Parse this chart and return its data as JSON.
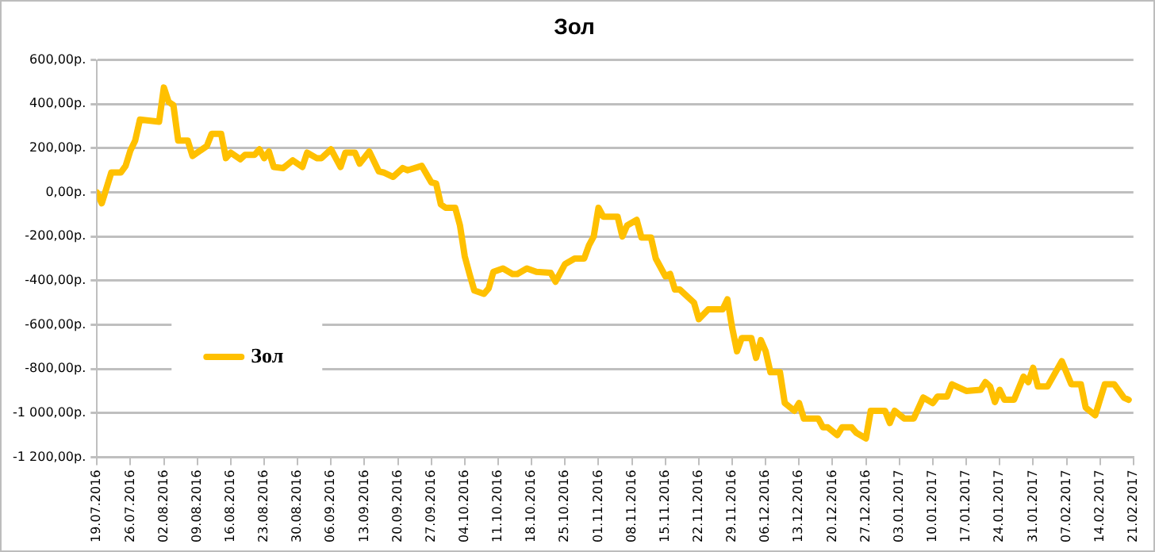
{
  "chart_data": {
    "type": "line",
    "title": "Зол",
    "x": [
      "2016-07-19",
      "2016-07-20",
      "2016-07-22",
      "2016-07-24",
      "2016-07-25",
      "2016-07-26",
      "2016-07-27",
      "2016-07-28",
      "2016-08-01",
      "2016-08-02",
      "2016-08-03",
      "2016-08-04",
      "2016-08-05",
      "2016-08-07",
      "2016-08-08",
      "2016-08-11",
      "2016-08-12",
      "2016-08-14",
      "2016-08-15",
      "2016-08-16",
      "2016-08-18",
      "2016-08-19",
      "2016-08-21",
      "2016-08-22",
      "2016-08-23",
      "2016-08-24",
      "2016-08-25",
      "2016-08-27",
      "2016-08-29",
      "2016-08-31",
      "2016-09-01",
      "2016-09-03",
      "2016-09-04",
      "2016-09-06",
      "2016-09-08",
      "2016-09-09",
      "2016-09-11",
      "2016-09-12",
      "2016-09-14",
      "2016-09-16",
      "2016-09-17",
      "2016-09-19",
      "2016-09-21",
      "2016-09-22",
      "2016-09-25",
      "2016-09-27",
      "2016-09-28",
      "2016-09-29",
      "2016-09-30",
      "2016-10-02",
      "2016-10-03",
      "2016-10-04",
      "2016-10-05",
      "2016-10-06",
      "2016-10-08",
      "2016-10-09",
      "2016-10-10",
      "2016-10-12",
      "2016-10-14",
      "2016-10-15",
      "2016-10-17",
      "2016-10-19",
      "2016-10-22",
      "2016-10-23",
      "2016-10-25",
      "2016-10-27",
      "2016-10-29",
      "2016-10-30",
      "2016-10-31",
      "2016-11-01",
      "2016-11-02",
      "2016-11-05",
      "2016-11-06",
      "2016-11-07",
      "2016-11-09",
      "2016-11-10",
      "2016-11-12",
      "2016-11-13",
      "2016-11-15",
      "2016-11-16",
      "2016-11-17",
      "2016-11-18",
      "2016-11-21",
      "2016-11-22",
      "2016-11-24",
      "2016-11-27",
      "2016-11-28",
      "2016-11-29",
      "2016-11-30",
      "2016-12-01",
      "2016-12-03",
      "2016-12-04",
      "2016-12-05",
      "2016-12-06",
      "2016-12-07",
      "2016-12-09",
      "2016-12-10",
      "2016-12-12",
      "2016-12-13",
      "2016-12-14",
      "2016-12-17",
      "2016-12-18",
      "2016-12-19",
      "2016-12-21",
      "2016-12-22",
      "2016-12-24",
      "2016-12-25",
      "2016-12-27",
      "2016-12-28",
      "2016-12-31",
      "2017-01-01",
      "2017-01-02",
      "2017-01-04",
      "2017-01-06",
      "2017-01-08",
      "2017-01-10",
      "2017-01-11",
      "2017-01-13",
      "2017-01-14",
      "2017-01-16",
      "2017-01-17",
      "2017-01-20",
      "2017-01-21",
      "2017-01-22",
      "2017-01-23",
      "2017-01-24",
      "2017-01-25",
      "2017-01-27",
      "2017-01-29",
      "2017-01-30",
      "2017-01-31",
      "2017-02-01",
      "2017-02-03",
      "2017-02-06",
      "2017-02-08",
      "2017-02-10",
      "2017-02-11",
      "2017-02-13",
      "2017-02-15",
      "2017-02-17",
      "2017-02-19",
      "2017-02-20"
    ],
    "series": [
      {
        "name": "Зол",
        "color": "#ffc000",
        "values": [
          0,
          -50,
          90,
          90,
          120,
          190,
          235,
          330,
          320,
          475,
          410,
          395,
          235,
          235,
          165,
          210,
          265,
          265,
          155,
          180,
          150,
          170,
          170,
          195,
          155,
          185,
          115,
          110,
          145,
          115,
          180,
          155,
          155,
          195,
          115,
          180,
          180,
          130,
          185,
          95,
          90,
          70,
          110,
          100,
          120,
          45,
          40,
          -55,
          -70,
          -70,
          -150,
          -290,
          -370,
          -445,
          -460,
          -435,
          -360,
          -345,
          -370,
          -370,
          -345,
          -360,
          -365,
          -405,
          -325,
          -300,
          -300,
          -240,
          -200,
          -70,
          -110,
          -110,
          -200,
          -150,
          -125,
          -205,
          -205,
          -300,
          -380,
          -370,
          -440,
          -440,
          -500,
          -575,
          -530,
          -530,
          -485,
          -615,
          -720,
          -660,
          -660,
          -750,
          -670,
          -720,
          -815,
          -815,
          -955,
          -990,
          -955,
          -1025,
          -1025,
          -1065,
          -1065,
          -1100,
          -1065,
          -1065,
          -1090,
          -1115,
          -990,
          -990,
          -1045,
          -990,
          -1025,
          -1025,
          -930,
          -955,
          -925,
          -925,
          -870,
          -890,
          -900,
          -895,
          -860,
          -880,
          -950,
          -895,
          -940,
          -940,
          -835,
          -860,
          -795,
          -880,
          -880,
          -765,
          -870,
          -870,
          -975,
          -1010,
          -870,
          -870,
          -930,
          -940
        ]
      }
    ],
    "xlim": [
      "2016-07-19",
      "2017-02-21"
    ],
    "xticks": [
      {
        "value": "2016-07-19",
        "label": "19.07.2016"
      },
      {
        "value": "2016-07-26",
        "label": "26.07.2016"
      },
      {
        "value": "2016-08-02",
        "label": "02.08.2016"
      },
      {
        "value": "2016-08-09",
        "label": "09.08.2016"
      },
      {
        "value": "2016-08-16",
        "label": "16.08.2016"
      },
      {
        "value": "2016-08-23",
        "label": "23.08.2016"
      },
      {
        "value": "2016-08-30",
        "label": "30.08.2016"
      },
      {
        "value": "2016-09-06",
        "label": "06.09.2016"
      },
      {
        "value": "2016-09-13",
        "label": "13.09.2016"
      },
      {
        "value": "2016-09-20",
        "label": "20.09.2016"
      },
      {
        "value": "2016-09-27",
        "label": "27.09.2016"
      },
      {
        "value": "2016-10-04",
        "label": "04.10.2016"
      },
      {
        "value": "2016-10-11",
        "label": "11.10.2016"
      },
      {
        "value": "2016-10-18",
        "label": "18.10.2016"
      },
      {
        "value": "2016-10-25",
        "label": "25.10.2016"
      },
      {
        "value": "2016-11-01",
        "label": "01.11.2016"
      },
      {
        "value": "2016-11-08",
        "label": "08.11.2016"
      },
      {
        "value": "2016-11-15",
        "label": "15.11.2016"
      },
      {
        "value": "2016-11-22",
        "label": "22.11.2016"
      },
      {
        "value": "2016-11-29",
        "label": "29.11.2016"
      },
      {
        "value": "2016-12-06",
        "label": "06.12.2016"
      },
      {
        "value": "2016-12-13",
        "label": "13.12.2016"
      },
      {
        "value": "2016-12-20",
        "label": "20.12.2016"
      },
      {
        "value": "2016-12-27",
        "label": "27.12.2016"
      },
      {
        "value": "2017-01-03",
        "label": "03.01.2017"
      },
      {
        "value": "2017-01-10",
        "label": "10.01.2017"
      },
      {
        "value": "2017-01-17",
        "label": "17.01.2017"
      },
      {
        "value": "2017-01-24",
        "label": "24.01.2017"
      },
      {
        "value": "2017-01-31",
        "label": "31.01.2017"
      },
      {
        "value": "2017-02-07",
        "label": "07.02.2017"
      },
      {
        "value": "2017-02-14",
        "label": "14.02.2017"
      },
      {
        "value": "2017-02-21",
        "label": "21.02.2017"
      }
    ],
    "ylim": [
      -1200,
      600
    ],
    "yticks": [
      {
        "value": 600,
        "label": "600,00р."
      },
      {
        "value": 400,
        "label": "400,00р."
      },
      {
        "value": 200,
        "label": "200,00р."
      },
      {
        "value": 0,
        "label": "0,00р."
      },
      {
        "value": -200,
        "label": "-200,00р."
      },
      {
        "value": -400,
        "label": "-400,00р."
      },
      {
        "value": -600,
        "label": "-600,00р."
      },
      {
        "value": -800,
        "label": "-800,00р."
      },
      {
        "value": -1000,
        "label": "-1 000,00р."
      },
      {
        "value": -1200,
        "label": "-1 200,00р."
      }
    ],
    "grid": "y",
    "legend": "left",
    "marker": "none",
    "line_style": "solid"
  }
}
